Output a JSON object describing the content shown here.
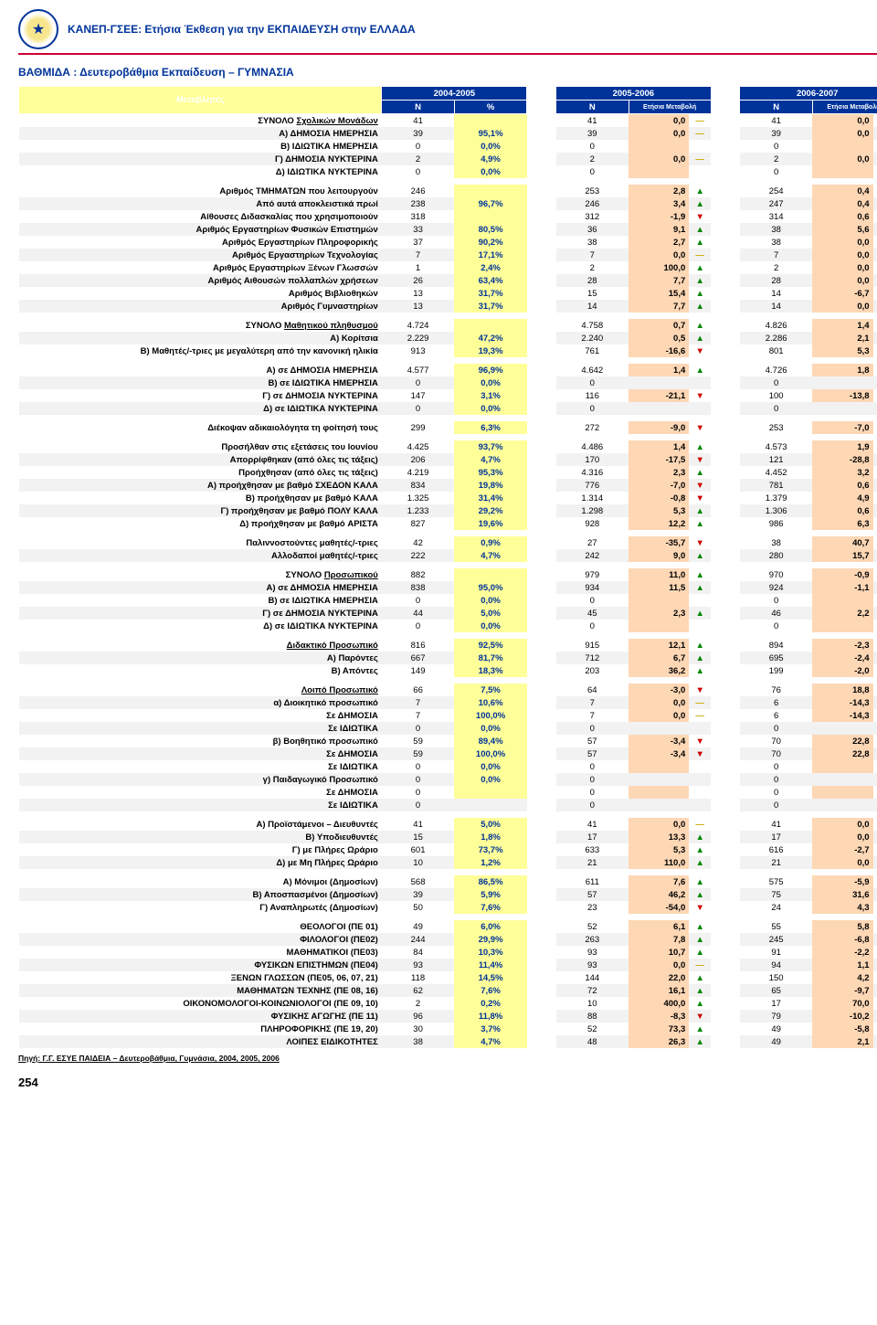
{
  "header": {
    "title": "ΚΑΝΕΠ-ΓΣΕΕ: Ετήσια Έκθεση για την ΕΚΠΑΙΔΕΥΣΗ στην ΕΛΛΑΔΑ"
  },
  "section": {
    "title": "ΒΑΘΜΙΔΑ :  Δευτεροβάθμια Εκπαίδευση – ΓΥΜΝΑΣΙΑ"
  },
  "columns": {
    "varHeader": "Μεταβλητές",
    "periods": [
      "2004-2005",
      "2005-2006",
      "2006-2007"
    ],
    "sub": {
      "n": "N",
      "pct": "%",
      "chg": "Ετήσια Μεταβολή"
    }
  },
  "rows": [
    {
      "label": "ΣΥΝΟΛΟ <span class=\"usr\">Σχολικών Μονάδων</span>",
      "n1": "41",
      "pct": "",
      "n2": "41",
      "chg2": "0,0",
      "a2": "flat",
      "n3": "41",
      "chg3": "0,0",
      "a3": "flat"
    },
    {
      "label": "Α) ΔΗΜΟΣΙΑ ΗΜΕΡΗΣΙΑ",
      "n1": "39",
      "pct": "95,1%",
      "n2": "39",
      "chg2": "0,0",
      "a2": "flat",
      "n3": "39",
      "chg3": "0,0",
      "a3": "flat"
    },
    {
      "label": "Β) ΙΔΙΩΤΙΚΑ ΗΜΕΡΗΣΙΑ",
      "n1": "0",
      "pct": "0,0%",
      "n2": "0",
      "chg2": "",
      "a2": "",
      "n3": "0",
      "chg3": "",
      "a3": ""
    },
    {
      "label": "Γ) ΔΗΜΟΣΙΑ ΝΥΚΤΕΡΙΝΑ",
      "n1": "2",
      "pct": "4,9%",
      "n2": "2",
      "chg2": "0,0",
      "a2": "flat",
      "n3": "2",
      "chg3": "0,0",
      "a3": "flat"
    },
    {
      "label": "Δ) ΙΔΙΩΤΙΚΑ ΝΥΚΤΕΡΙΝΑ",
      "n1": "0",
      "pct": "0,0%",
      "n2": "0",
      "chg2": "",
      "a2": "",
      "n3": "0",
      "chg3": "",
      "a3": ""
    },
    {
      "label": "Αριθμός ΤΜΗΜΑΤΩΝ που λειτουργούν",
      "n1": "246",
      "pct": "",
      "n2": "253",
      "chg2": "2,8",
      "a2": "up",
      "n3": "254",
      "chg3": "0,4",
      "a3": "up",
      "gap": true
    },
    {
      "label": "Από αυτά αποκλειστικά πρωί",
      "n1": "238",
      "pct": "96,7%",
      "n2": "246",
      "chg2": "3,4",
      "a2": "up",
      "n3": "247",
      "chg3": "0,4",
      "a3": "up"
    },
    {
      "label": "Αίθουσες Διδασκαλίας που χρησιμοποιούν",
      "n1": "318",
      "pct": "",
      "n2": "312",
      "chg2": "-1,9",
      "a2": "down",
      "n3": "314",
      "chg3": "0,6",
      "a3": "up"
    },
    {
      "label": "Αριθμός Εργαστηρίων Φυσικών Επιστημών",
      "n1": "33",
      "pct": "80,5%",
      "n2": "36",
      "chg2": "9,1",
      "a2": "up",
      "n3": "38",
      "chg3": "5,6",
      "a3": "up"
    },
    {
      "label": "Αριθμός Εργαστηρίων Πληροφορικής",
      "n1": "37",
      "pct": "90,2%",
      "n2": "38",
      "chg2": "2,7",
      "a2": "up",
      "n3": "38",
      "chg3": "0,0",
      "a3": "flat"
    },
    {
      "label": "Αριθμός Εργαστηρίων Τεχνολογίας",
      "n1": "7",
      "pct": "17,1%",
      "n2": "7",
      "chg2": "0,0",
      "a2": "flat",
      "n3": "7",
      "chg3": "0,0",
      "a3": "flat"
    },
    {
      "label": "Αριθμός Εργαστηρίων Ξένων Γλωσσών",
      "n1": "1",
      "pct": "2,4%",
      "n2": "2",
      "chg2": "100,0",
      "a2": "up",
      "n3": "2",
      "chg3": "0,0",
      "a3": "flat"
    },
    {
      "label": "Αριθμός Αιθουσών πολλαπλών χρήσεων",
      "n1": "26",
      "pct": "63,4%",
      "n2": "28",
      "chg2": "7,7",
      "a2": "up",
      "n3": "28",
      "chg3": "0,0",
      "a3": "flat"
    },
    {
      "label": "Αριθμός Βιβλιοθηκών",
      "n1": "13",
      "pct": "31,7%",
      "n2": "15",
      "chg2": "15,4",
      "a2": "up",
      "n3": "14",
      "chg3": "-6,7",
      "a3": "down"
    },
    {
      "label": "Αριθμός Γυμναστηρίων",
      "n1": "13",
      "pct": "31,7%",
      "n2": "14",
      "chg2": "7,7",
      "a2": "up",
      "n3": "14",
      "chg3": "0,0",
      "a3": "flat"
    },
    {
      "label": "ΣΥΝΟΛΟ <span class=\"usr\">Μαθητικού πληθυσμού</span>",
      "n1": "4.724",
      "pct": "",
      "n2": "4.758",
      "chg2": "0,7",
      "a2": "up",
      "n3": "4.826",
      "chg3": "1,4",
      "a3": "up",
      "gap": true
    },
    {
      "label": "Α) Κορίτσια",
      "n1": "2.229",
      "pct": "47,2%",
      "n2": "2.240",
      "chg2": "0,5",
      "a2": "up",
      "n3": "2.286",
      "chg3": "2,1",
      "a3": "up"
    },
    {
      "label": "Β) Μαθητές/-τριες με μεγαλύτερη από την κανονική ηλικία",
      "n1": "913",
      "pct": "19,3%",
      "n2": "761",
      "chg2": "-16,6",
      "a2": "down",
      "n3": "801",
      "chg3": "5,3",
      "a3": "up"
    },
    {
      "label": "Α) σε ΔΗΜΟΣΙΑ ΗΜΕΡΗΣΙΑ",
      "n1": "4.577",
      "pct": "96,9%",
      "n2": "4.642",
      "chg2": "1,4",
      "a2": "up",
      "n3": "4.726",
      "chg3": "1,8",
      "a3": "up",
      "gap": true
    },
    {
      "label": "Β) σε ΙΔΙΩΤΙΚΑ ΗΜΕΡΗΣΙΑ",
      "n1": "0",
      "pct": "0,0%",
      "n2": "0",
      "chg2": "",
      "a2": "",
      "n3": "0",
      "chg3": "",
      "a3": ""
    },
    {
      "label": "Γ) σε ΔΗΜΟΣΙΑ ΝΥΚΤΕΡΙΝΑ",
      "n1": "147",
      "pct": "3,1%",
      "n2": "116",
      "chg2": "-21,1",
      "a2": "down",
      "n3": "100",
      "chg3": "-13,8",
      "a3": "down"
    },
    {
      "label": "Δ) σε ΙΔΙΩΤΙΚΑ ΝΥΚΤΕΡΙΝΑ",
      "n1": "0",
      "pct": "0,0%",
      "n2": "0",
      "chg2": "",
      "a2": "",
      "n3": "0",
      "chg3": "",
      "a3": ""
    },
    {
      "label": "Διέκοψαν αδικαιολόγητα τη φοίτησή τους",
      "n1": "299",
      "pct": "6,3%",
      "n2": "272",
      "chg2": "-9,0",
      "a2": "down",
      "n3": "253",
      "chg3": "-7,0",
      "a3": "down",
      "gap": true
    },
    {
      "label": "Προσήλθαν στις εξετάσεις του Ιουνίου",
      "n1": "4.425",
      "pct": "93,7%",
      "n2": "4.486",
      "chg2": "1,4",
      "a2": "up",
      "n3": "4.573",
      "chg3": "1,9",
      "a3": "up",
      "gap": true
    },
    {
      "label": "Απορρίφθηκαν (από όλες τις τάξεις)",
      "n1": "206",
      "pct": "4,7%",
      "n2": "170",
      "chg2": "-17,5",
      "a2": "down",
      "n3": "121",
      "chg3": "-28,8",
      "a3": "down"
    },
    {
      "label": "Προήχθησαν (από όλες τις τάξεις)",
      "n1": "4.219",
      "pct": "95,3%",
      "n2": "4.316",
      "chg2": "2,3",
      "a2": "up",
      "n3": "4.452",
      "chg3": "3,2",
      "a3": "up"
    },
    {
      "label": "Α) προήχθησαν με βαθμό <b>ΣΧΕΔΟΝ ΚΑΛΑ</b>",
      "n1": "834",
      "pct": "19,8%",
      "n2": "776",
      "chg2": "-7,0",
      "a2": "down",
      "n3": "781",
      "chg3": "0,6",
      "a3": "up"
    },
    {
      "label": "Β) προήχθησαν με βαθμό <b>ΚΑΛΑ</b>",
      "n1": "1.325",
      "pct": "31,4%",
      "n2": "1.314",
      "chg2": "-0,8",
      "a2": "down",
      "n3": "1.379",
      "chg3": "4,9",
      "a3": "up"
    },
    {
      "label": "Γ) προήχθησαν με βαθμό <b>ΠΟΛΥ ΚΑΛΑ</b>",
      "n1": "1.233",
      "pct": "29,2%",
      "n2": "1.298",
      "chg2": "5,3",
      "a2": "up",
      "n3": "1.306",
      "chg3": "0,6",
      "a3": "up"
    },
    {
      "label": "Δ) προήχθησαν με βαθμό <b>ΑΡΙΣΤΑ</b>",
      "n1": "827",
      "pct": "19,6%",
      "n2": "928",
      "chg2": "12,2",
      "a2": "up",
      "n3": "986",
      "chg3": "6,3",
      "a3": "up"
    },
    {
      "label": "Παλιννοστούντες μαθητές/-τριες",
      "n1": "42",
      "pct": "0,9%",
      "n2": "27",
      "chg2": "-35,7",
      "a2": "down",
      "n3": "38",
      "chg3": "40,7",
      "a3": "up",
      "gap": true
    },
    {
      "label": "Αλλοδαποί μαθητές/-τριες",
      "n1": "222",
      "pct": "4,7%",
      "n2": "242",
      "chg2": "9,0",
      "a2": "up",
      "n3": "280",
      "chg3": "15,7",
      "a3": "up"
    },
    {
      "label": "ΣΥΝΟΛΟ <span class=\"usr\">Προσωπικού</span>",
      "n1": "882",
      "pct": "",
      "n2": "979",
      "chg2": "11,0",
      "a2": "up",
      "n3": "970",
      "chg3": "-0,9",
      "a3": "down",
      "gap": true
    },
    {
      "label": "Α) σε ΔΗΜΟΣΙΑ ΗΜΕΡΗΣΙΑ",
      "n1": "838",
      "pct": "95,0%",
      "n2": "934",
      "chg2": "11,5",
      "a2": "up",
      "n3": "924",
      "chg3": "-1,1",
      "a3": "down"
    },
    {
      "label": "Β) σε ΙΔΙΩΤΙΚΑ ΗΜΕΡΗΣΙΑ",
      "n1": "0",
      "pct": "0,0%",
      "n2": "0",
      "chg2": "",
      "a2": "",
      "n3": "0",
      "chg3": "",
      "a3": ""
    },
    {
      "label": "Γ) σε ΔΗΜΟΣΙΑ ΝΥΚΤΕΡΙΝΑ",
      "n1": "44",
      "pct": "5,0%",
      "n2": "45",
      "chg2": "2,3",
      "a2": "up",
      "n3": "46",
      "chg3": "2,2",
      "a3": "up"
    },
    {
      "label": "Δ) σε ΙΔΙΩΤΙΚΑ ΝΥΚΤΕΡΙΝΑ",
      "n1": "0",
      "pct": "0,0%",
      "n2": "0",
      "chg2": "",
      "a2": "",
      "n3": "0",
      "chg3": "",
      "a3": ""
    },
    {
      "label": "<span class=\"usr\">Διδακτικό Προσωπικό</span>",
      "n1": "816",
      "pct": "92,5%",
      "n2": "915",
      "chg2": "12,1",
      "a2": "up",
      "n3": "894",
      "chg3": "-2,3",
      "a3": "down",
      "gap": true
    },
    {
      "label": "Α) Παρόντες",
      "n1": "667",
      "pct": "81,7%",
      "n2": "712",
      "chg2": "6,7",
      "a2": "up",
      "n3": "695",
      "chg3": "-2,4",
      "a3": "down"
    },
    {
      "label": "Β) Απόντες",
      "n1": "149",
      "pct": "18,3%",
      "n2": "203",
      "chg2": "36,2",
      "a2": "up",
      "n3": "199",
      "chg3": "-2,0",
      "a3": "down"
    },
    {
      "label": "<span class=\"usr\">Λοιπό Προσωπικό</span>",
      "n1": "66",
      "pct": "7,5%",
      "n2": "64",
      "chg2": "-3,0",
      "a2": "down",
      "n3": "76",
      "chg3": "18,8",
      "a3": "up",
      "gap": true
    },
    {
      "label": "α) Διοικητικό προσωπικό",
      "n1": "7",
      "pct": "10,6%",
      "n2": "7",
      "chg2": "0,0",
      "a2": "flat",
      "n3": "6",
      "chg3": "-14,3",
      "a3": "down"
    },
    {
      "label": "Σε ΔΗΜΟΣΙΑ",
      "n1": "7",
      "pct": "100,0%",
      "n2": "7",
      "chg2": "0,0",
      "a2": "flat",
      "n3": "6",
      "chg3": "-14,3",
      "a3": "down"
    },
    {
      "label": "Σε ΙΔΙΩΤΙΚΑ",
      "n1": "0",
      "pct": "0,0%",
      "n2": "0",
      "chg2": "",
      "a2": "",
      "n3": "0",
      "chg3": "",
      "a3": ""
    },
    {
      "label": "β) Βοηθητικό προσωπικό",
      "n1": "59",
      "pct": "89,4%",
      "n2": "57",
      "chg2": "-3,4",
      "a2": "down",
      "n3": "70",
      "chg3": "22,8",
      "a3": "up"
    },
    {
      "label": "Σε ΔΗΜΟΣΙΑ",
      "n1": "59",
      "pct": "100,0%",
      "n2": "57",
      "chg2": "-3,4",
      "a2": "down",
      "n3": "70",
      "chg3": "22,8",
      "a3": "up"
    },
    {
      "label": "Σε ΙΔΙΩΤΙΚΑ",
      "n1": "0",
      "pct": "0,0%",
      "n2": "0",
      "chg2": "",
      "a2": "",
      "n3": "0",
      "chg3": "",
      "a3": ""
    },
    {
      "label": "γ) Παιδαγωγικό Προσωπικό",
      "n1": "0",
      "pct": "0,0%",
      "n2": "0",
      "chg2": "",
      "a2": "",
      "n3": "0",
      "chg3": "",
      "a3": ""
    },
    {
      "label": "Σε ΔΗΜΟΣΙΑ",
      "n1": "0",
      "pct": "",
      "n2": "0",
      "chg2": "",
      "a2": "",
      "n3": "0",
      "chg3": "",
      "a3": ""
    },
    {
      "label": "Σε ΙΔΙΩΤΙΚΑ",
      "n1": "0",
      "pct": "",
      "n2": "0",
      "chg2": "",
      "a2": "",
      "n3": "0",
      "chg3": "",
      "a3": ""
    },
    {
      "label": "Α) Προϊστάμενοι – Διευθυντές",
      "n1": "41",
      "pct": "5,0%",
      "n2": "41",
      "chg2": "0,0",
      "a2": "flat",
      "n3": "41",
      "chg3": "0,0",
      "a3": "flat",
      "gap": true
    },
    {
      "label": "Β) Υποδιευθυντές",
      "n1": "15",
      "pct": "1,8%",
      "n2": "17",
      "chg2": "13,3",
      "a2": "up",
      "n3": "17",
      "chg3": "0,0",
      "a3": "flat"
    },
    {
      "label": "Γ) με Πλήρες Ωράριο",
      "n1": "601",
      "pct": "73,7%",
      "n2": "633",
      "chg2": "5,3",
      "a2": "up",
      "n3": "616",
      "chg3": "-2,7",
      "a3": "down"
    },
    {
      "label": "Δ) με Μη Πλήρες Ωράριο",
      "n1": "10",
      "pct": "1,2%",
      "n2": "21",
      "chg2": "110,0",
      "a2": "up",
      "n3": "21",
      "chg3": "0,0",
      "a3": "flat"
    },
    {
      "label": "Α) Μόνιμοι (Δημοσίων)",
      "n1": "568",
      "pct": "86,5%",
      "n2": "611",
      "chg2": "7,6",
      "a2": "up",
      "n3": "575",
      "chg3": "-5,9",
      "a3": "down",
      "gap": true
    },
    {
      "label": "Β) Αποσπασμένοι (Δημοσίων)",
      "n1": "39",
      "pct": "5,9%",
      "n2": "57",
      "chg2": "46,2",
      "a2": "up",
      "n3": "75",
      "chg3": "31,6",
      "a3": "up"
    },
    {
      "label": "Γ) Αναπληρωτές (Δημοσίων)",
      "n1": "50",
      "pct": "7,6%",
      "n2": "23",
      "chg2": "-54,0",
      "a2": "down",
      "n3": "24",
      "chg3": "4,3",
      "a3": "up"
    },
    {
      "label": "ΘΕΟΛΟΓΟΙ (ΠΕ 01)",
      "n1": "49",
      "pct": "6,0%",
      "n2": "52",
      "chg2": "6,1",
      "a2": "up",
      "n3": "55",
      "chg3": "5,8",
      "a3": "up",
      "gap": true
    },
    {
      "label": "ΦΙΛΟΛΟΓΟΙ (ΠΕ02)",
      "n1": "244",
      "pct": "29,9%",
      "n2": "263",
      "chg2": "7,8",
      "a2": "up",
      "n3": "245",
      "chg3": "-6,8",
      "a3": "down"
    },
    {
      "label": "ΜΑΘΗΜΑΤΙΚΟΙ (ΠΕ03)",
      "n1": "84",
      "pct": "10,3%",
      "n2": "93",
      "chg2": "10,7",
      "a2": "up",
      "n3": "91",
      "chg3": "-2,2",
      "a3": "down"
    },
    {
      "label": "ΦΥΣΙΚΩΝ ΕΠΙΣΤΗΜΩΝ (ΠΕ04)",
      "n1": "93",
      "pct": "11,4%",
      "n2": "93",
      "chg2": "0,0",
      "a2": "flat",
      "n3": "94",
      "chg3": "1,1",
      "a3": "up"
    },
    {
      "label": "ΞΕΝΩΝ ΓΛΩΣΣΩΝ (ΠΕ05, 06, 07, 21)",
      "n1": "118",
      "pct": "14,5%",
      "n2": "144",
      "chg2": "22,0",
      "a2": "up",
      "n3": "150",
      "chg3": "4,2",
      "a3": "up"
    },
    {
      "label": "ΜΑΘΗΜΑΤΩΝ ΤΕΧΝΗΣ (ΠΕ 08, 16)",
      "n1": "62",
      "pct": "7,6%",
      "n2": "72",
      "chg2": "16,1",
      "a2": "up",
      "n3": "65",
      "chg3": "-9,7",
      "a3": "down"
    },
    {
      "label": "ΟΙΚΟΝΟΜΟΛΟΓΟΙ-ΚΟΙΝΩΝΙΟΛΟΓΟΙ (ΠΕ 09, 10)",
      "n1": "2",
      "pct": "0,2%",
      "n2": "10",
      "chg2": "400,0",
      "a2": "up",
      "n3": "17",
      "chg3": "70,0",
      "a3": "up"
    },
    {
      "label": "ΦΥΣΙΚΗΣ ΑΓΩΓΗΣ (ΠΕ 11)",
      "n1": "96",
      "pct": "11,8%",
      "n2": "88",
      "chg2": "-8,3",
      "a2": "down",
      "n3": "79",
      "chg3": "-10,2",
      "a3": "down"
    },
    {
      "label": "ΠΛΗΡΟΦΟΡΙΚΗΣ (ΠΕ 19, 20)",
      "n1": "30",
      "pct": "3,7%",
      "n2": "52",
      "chg2": "73,3",
      "a2": "up",
      "n3": "49",
      "chg3": "-5,8",
      "a3": "down"
    },
    {
      "label": "ΛΟΙΠΕΣ ΕΙΔΙΚΟΤΗΤΕΣ",
      "n1": "38",
      "pct": "4,7%",
      "n2": "48",
      "chg2": "26,3",
      "a2": "up",
      "n3": "49",
      "chg3": "2,1",
      "a3": "up"
    }
  ],
  "source": "Πηγή: Γ.Γ. ΕΣΥΕ  ΠΑΙΔΕΙΑ – Δευτεροβάθμια, Γυμνάσια, 2004, 2005, 2006",
  "pageNum": "254"
}
